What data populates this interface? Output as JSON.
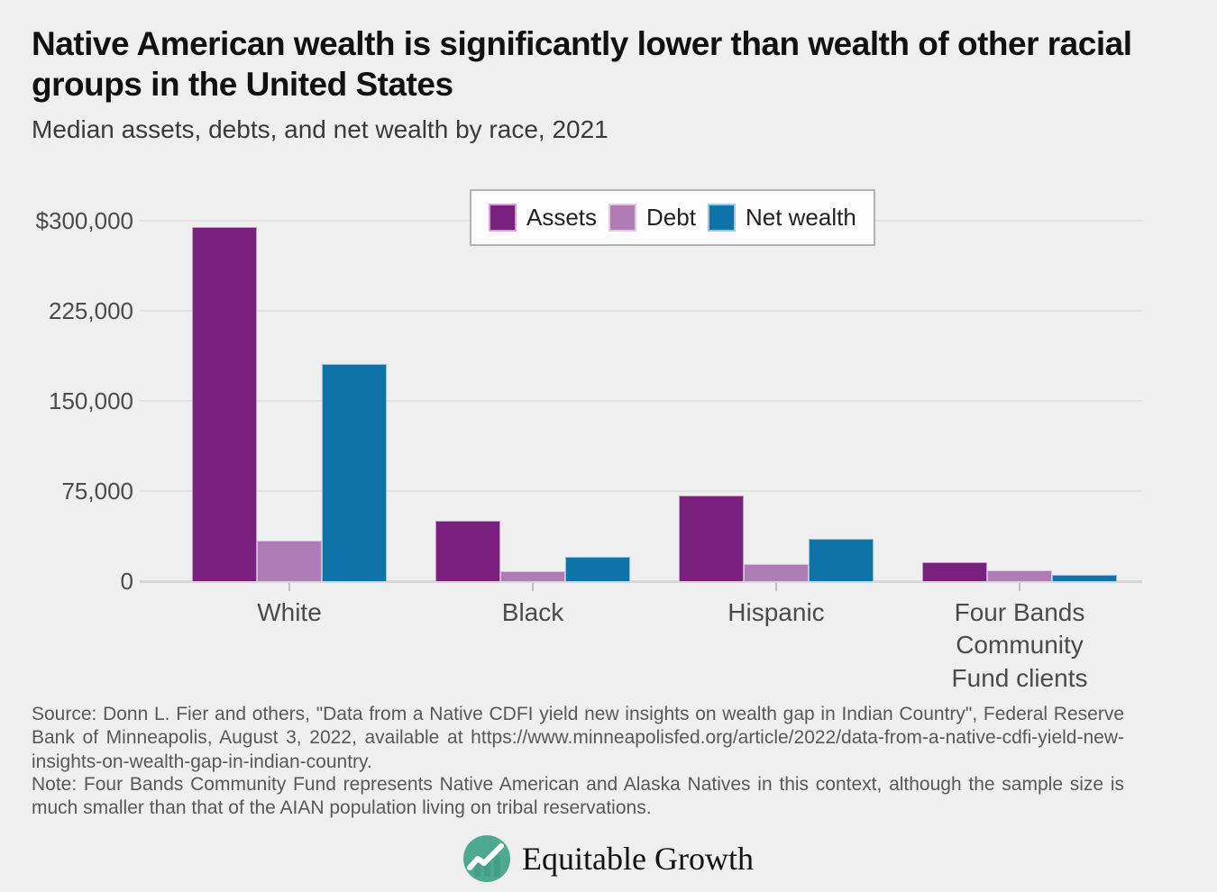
{
  "page": {
    "title": "Native American wealth is significantly lower than wealth of other racial groups in the United States",
    "subtitle": "Median assets, debts, and net wealth by race, 2021",
    "source": "Source: Donn L. Fier and others, \"Data from a Native CDFI yield new insights on wealth gap in Indian Country\", Federal Reserve Bank of Minneapolis, August 3, 2022, available at https://www.minneapolisfed.org/article/2022/data-from-a-native-cdfi-yield-new-insights-on-wealth-gap-in-indian-country.",
    "note": "Note: Four Bands Community Fund represents Native American and Alaska Natives in this context, although the sample size is much smaller than that of the AIAN population living on tribal reservations.",
    "logo_text": "Equitable Growth",
    "logo_color": "#4ea990",
    "background_color": "#efefef"
  },
  "chart_data": {
    "type": "bar",
    "title": "Median assets, debts, and net wealth by race, 2021",
    "categories": [
      "White",
      "Black",
      "Hispanic",
      "Four Bands\nCommunity\nFund clients"
    ],
    "series": [
      {
        "name": "Assets",
        "color": "#7a2180",
        "values": [
          295000,
          50000,
          71000,
          16000
        ]
      },
      {
        "name": "Debt",
        "color": "#ae7bb5",
        "values": [
          34000,
          8000,
          14000,
          9000
        ]
      },
      {
        "name": "Net wealth",
        "color": "#0f73a8",
        "values": [
          181000,
          20000,
          35000,
          5000
        ]
      }
    ],
    "ylim": [
      0,
      300000
    ],
    "yticks": [
      {
        "label": "$300,000",
        "value": 300000
      },
      {
        "label": "225,000",
        "value": 225000
      },
      {
        "label": "150,000",
        "value": 150000
      },
      {
        "label": "75,000",
        "value": 75000
      },
      {
        "label": "0",
        "value": 0
      }
    ],
    "grid": true,
    "legend_position": "top-center"
  }
}
